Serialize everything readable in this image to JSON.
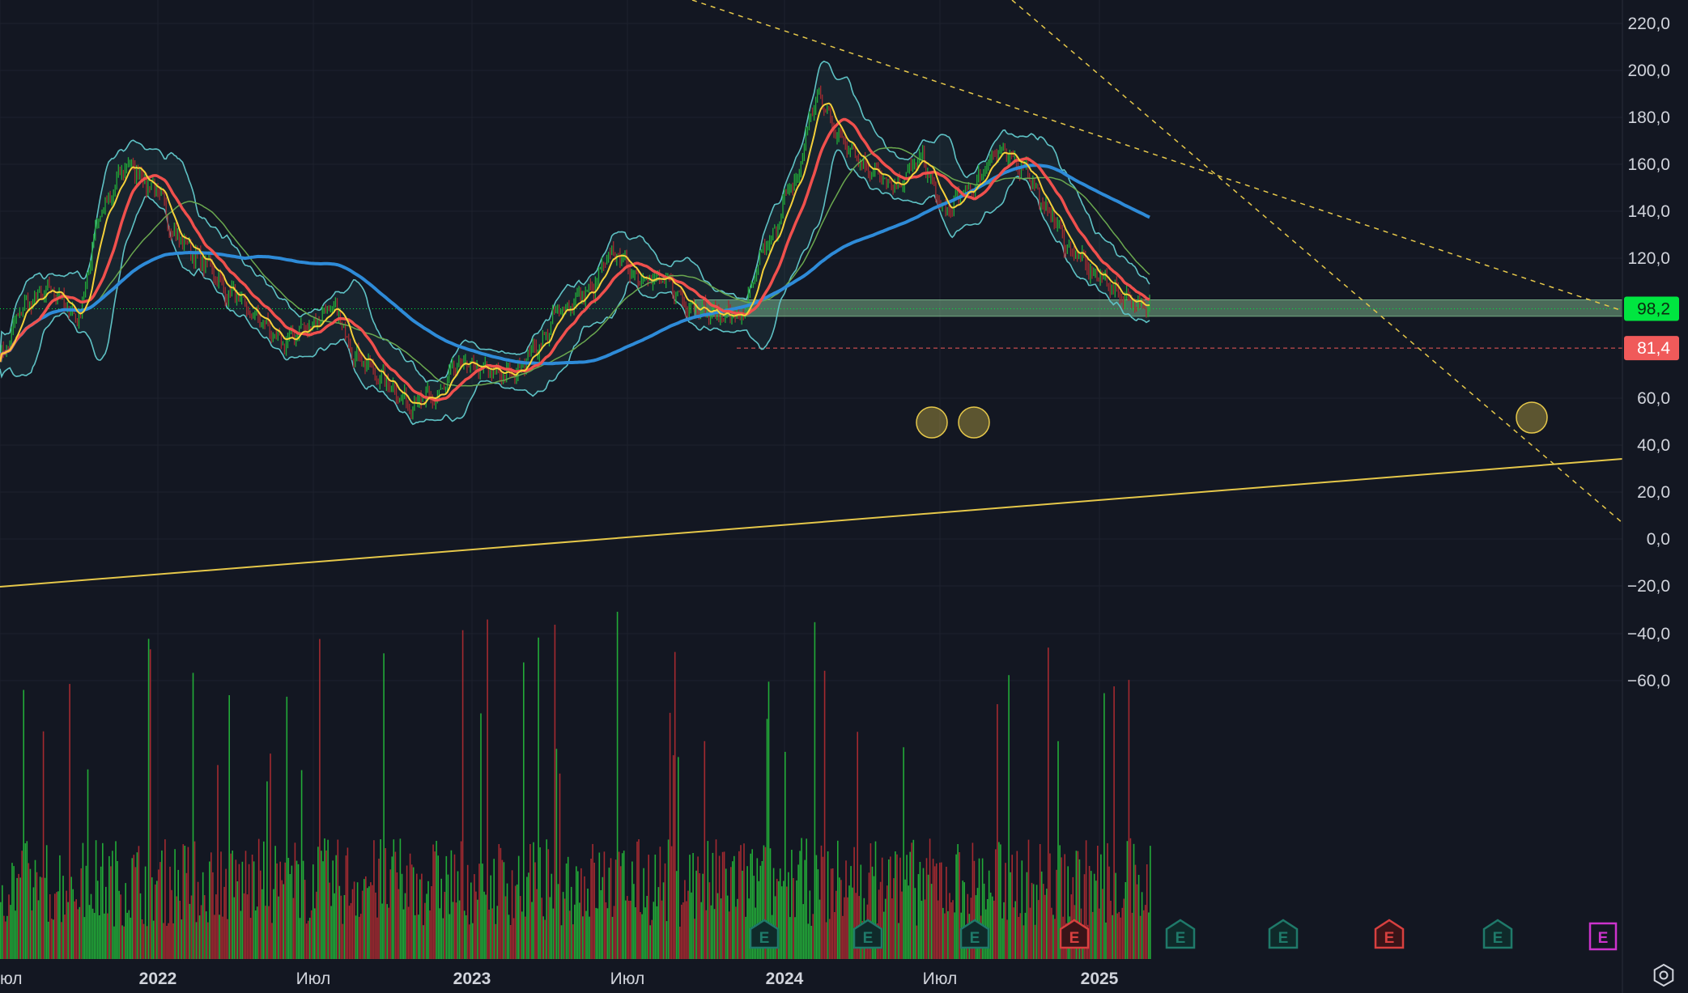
{
  "colors": {
    "background": "#131722",
    "grid": "#1e222d",
    "text": "#d1d4dc",
    "up": "#22ab38",
    "down": "#a42a30",
    "ma_blue": "#2e8bd8",
    "ma_red": "#f0504d",
    "ma_yellow": "#f5d13a",
    "ma_green": "#6aa84f",
    "band": "#5ec2c5",
    "zone": "#8fd19e",
    "trend_yellow": "#e6c84a",
    "price_green": "#00e640",
    "price_red": "#f05a5a",
    "earnings_past": "#1f7a6a",
    "earnings_miss": "#d8403f",
    "earnings_future": "#cc33cc",
    "settings_icon": "#d1d4dc"
  },
  "price_axis": {
    "ticks": [
      "220,0",
      "200,0",
      "180,0",
      "160,0",
      "140,0",
      "120,0",
      "60,0",
      "40,0",
      "20,0",
      "0,0",
      "−20,0",
      "−40,0",
      "−60,0"
    ]
  },
  "price_labels": [
    {
      "value": 98.2,
      "text": "98,2",
      "color_key": "price_green"
    },
    {
      "value": 81.4,
      "text": "81,4",
      "color_key": "price_red"
    }
  ],
  "time_axis": {
    "labels": [
      {
        "text": "юл",
        "bold": false
      },
      {
        "text": "2022",
        "bold": true
      },
      {
        "text": "Июл",
        "bold": false
      },
      {
        "text": "2023",
        "bold": true
      },
      {
        "text": "Июл",
        "bold": false
      },
      {
        "text": "2024",
        "bold": true
      },
      {
        "text": "Июл",
        "bold": false
      },
      {
        "text": "2025",
        "bold": true
      }
    ]
  },
  "earnings_markers": [
    {
      "label": "E",
      "type": "past"
    },
    {
      "label": "E",
      "type": "past"
    },
    {
      "label": "E",
      "type": "past"
    },
    {
      "label": "E",
      "type": "miss"
    },
    {
      "label": "E",
      "type": "past"
    },
    {
      "label": "E",
      "type": "past"
    },
    {
      "label": "E",
      "type": "miss"
    },
    {
      "label": "E",
      "type": "past"
    },
    {
      "label": "E",
      "type": "future"
    }
  ],
  "chart_data": {
    "type": "line",
    "yrange": [
      45,
      228
    ],
    "date_range": [
      "2021-07",
      "2025-04"
    ],
    "x": [
      "2021-07",
      "2021-08",
      "2021-09",
      "2021-10",
      "2021-11",
      "2021-12",
      "2022-01",
      "2022-02",
      "2022-03",
      "2022-04",
      "2022-05",
      "2022-06",
      "2022-07",
      "2022-08",
      "2022-09",
      "2022-10",
      "2022-11",
      "2022-12",
      "2023-01",
      "2023-02",
      "2023-03",
      "2023-04",
      "2023-05",
      "2023-06",
      "2023-07",
      "2023-08",
      "2023-09",
      "2023-10",
      "2023-11",
      "2023-12",
      "2024-01",
      "2024-02",
      "2024-03",
      "2024-04",
      "2024-05",
      "2024-06",
      "2024-07",
      "2024-08",
      "2024-09",
      "2024-10",
      "2024-11",
      "2024-12",
      "2025-01",
      "2025-02",
      "2025-03",
      "2025-04"
    ],
    "series": [
      {
        "values": [
          78,
          100,
          106,
          95,
          140,
          160,
          150,
          128,
          118,
          105,
          95,
          84,
          90,
          98,
          78,
          68,
          58,
          60,
          75,
          72,
          70,
          82,
          98,
          105,
          122,
          112,
          110,
          100,
          96,
          95,
          125,
          150,
          188,
          170,
          158,
          150,
          162,
          140,
          150,
          165,
          160,
          140,
          122,
          112,
          103,
          98
        ]
      }
    ],
    "support_zone": [
      95,
      102
    ],
    "support_level": 98.2,
    "price_line_red": 81.4,
    "volume_relative": true
  }
}
